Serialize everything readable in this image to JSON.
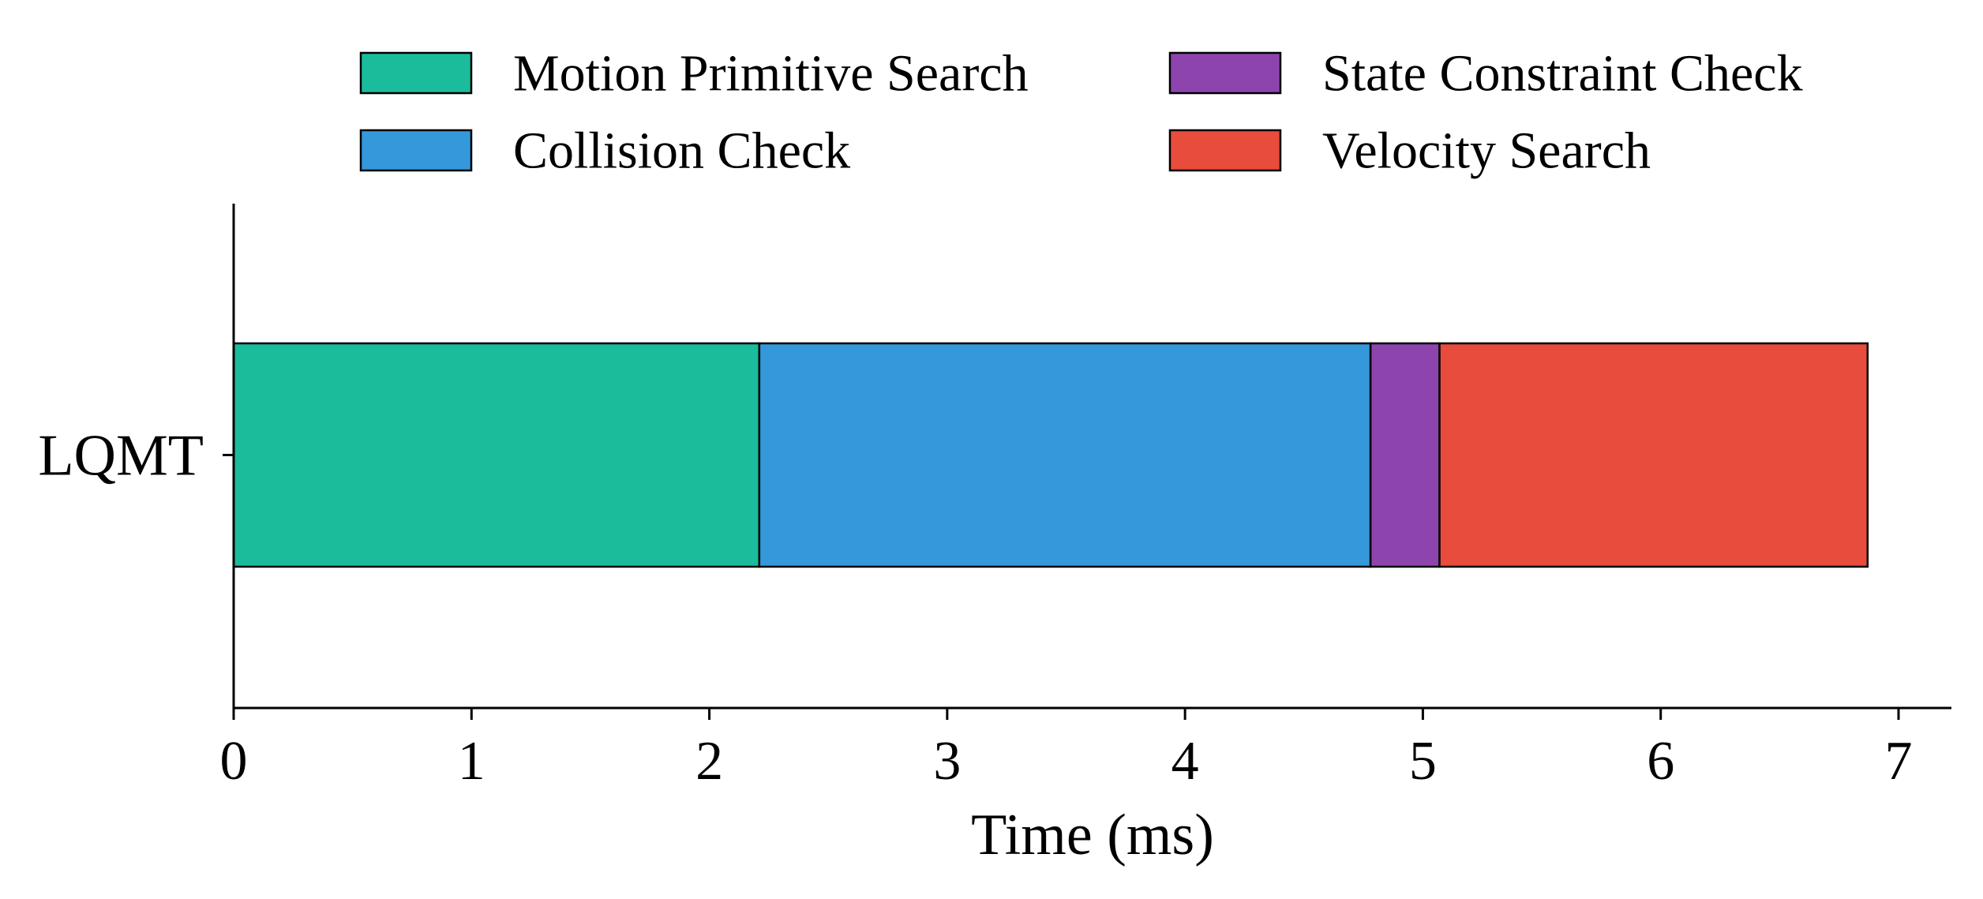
{
  "chart_data": {
    "type": "bar",
    "orientation": "horizontal",
    "stacked": true,
    "categories": [
      "LQMT"
    ],
    "series": [
      {
        "name": "Motion Primitive Search",
        "values": [
          2.21
        ],
        "color": "#1abc9c"
      },
      {
        "name": "Collision Check",
        "values": [
          2.57
        ],
        "color": "#3498db"
      },
      {
        "name": "State Constraint Check",
        "values": [
          0.29
        ],
        "color": "#8e44ad"
      },
      {
        "name": "Velocity Search",
        "values": [
          1.8
        ],
        "color": "#e74c3c"
      }
    ],
    "xlabel": "Time (ms)",
    "ylabel": "",
    "title": "",
    "xlim": [
      0,
      7.22
    ],
    "xticks": [
      "0",
      "1",
      "2",
      "3",
      "4",
      "5",
      "6",
      "7"
    ],
    "grid": false,
    "legend": {
      "placement": "top-center",
      "columns": 2
    }
  }
}
